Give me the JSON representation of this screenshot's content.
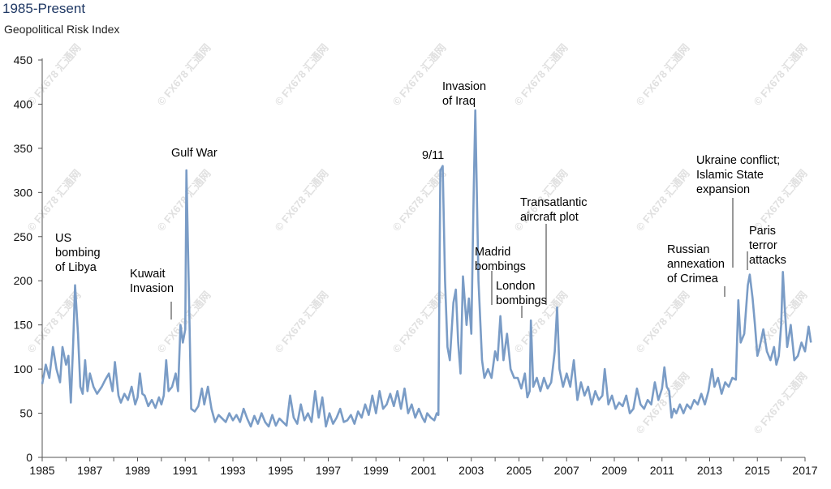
{
  "header": {
    "title": "1985-Present",
    "subtitle": "Geopolitical Risk Index"
  },
  "watermark": "© FX678 汇通网",
  "chart_data": {
    "type": "line",
    "title": "1985-Present",
    "subtitle": "Geopolitical Risk Index",
    "xlabel": "",
    "ylabel": "",
    "ylim": [
      0,
      450
    ],
    "xlim": [
      1985,
      2017.25
    ],
    "yticks": [
      "0",
      "50",
      "100",
      "150",
      "200",
      "250",
      "300",
      "350",
      "400",
      "450"
    ],
    "xticks": [
      "1985",
      "1987",
      "1989",
      "1991",
      "1993",
      "1995",
      "1997",
      "1999",
      "2001",
      "2003",
      "2005",
      "2007",
      "2009",
      "2011",
      "2013",
      "2015",
      "2017"
    ],
    "grid": false,
    "line_color": "#7a9cc6",
    "series": [
      {
        "values": [
          [
            1985.0,
            83
          ],
          [
            1985.15,
            105
          ],
          [
            1985.3,
            90
          ],
          [
            1985.45,
            125
          ],
          [
            1985.6,
            100
          ],
          [
            1985.75,
            85
          ],
          [
            1985.85,
            125
          ],
          [
            1986.0,
            105
          ],
          [
            1986.1,
            115
          ],
          [
            1986.2,
            62
          ],
          [
            1986.3,
            130
          ],
          [
            1986.38,
            195
          ],
          [
            1986.5,
            140
          ],
          [
            1986.6,
            80
          ],
          [
            1986.7,
            72
          ],
          [
            1986.8,
            110
          ],
          [
            1986.9,
            75
          ],
          [
            1987.0,
            95
          ],
          [
            1987.15,
            80
          ],
          [
            1987.3,
            72
          ],
          [
            1987.5,
            80
          ],
          [
            1987.65,
            88
          ],
          [
            1987.8,
            95
          ],
          [
            1987.95,
            75
          ],
          [
            1988.05,
            108
          ],
          [
            1988.2,
            70
          ],
          [
            1988.3,
            62
          ],
          [
            1988.45,
            72
          ],
          [
            1988.6,
            65
          ],
          [
            1988.75,
            80
          ],
          [
            1988.9,
            60
          ],
          [
            1989.0,
            68
          ],
          [
            1989.1,
            95
          ],
          [
            1989.2,
            72
          ],
          [
            1989.3,
            70
          ],
          [
            1989.45,
            58
          ],
          [
            1989.6,
            65
          ],
          [
            1989.75,
            56
          ],
          [
            1989.9,
            68
          ],
          [
            1990.0,
            60
          ],
          [
            1990.1,
            70
          ],
          [
            1990.2,
            110
          ],
          [
            1990.3,
            75
          ],
          [
            1990.45,
            80
          ],
          [
            1990.6,
            95
          ],
          [
            1990.7,
            75
          ],
          [
            1990.8,
            150
          ],
          [
            1990.9,
            130
          ],
          [
            1991.0,
            145
          ],
          [
            1991.05,
            325
          ],
          [
            1991.15,
            190
          ],
          [
            1991.25,
            55
          ],
          [
            1991.4,
            52
          ],
          [
            1991.55,
            58
          ],
          [
            1991.7,
            78
          ],
          [
            1991.8,
            60
          ],
          [
            1991.95,
            80
          ],
          [
            1992.1,
            55
          ],
          [
            1992.25,
            40
          ],
          [
            1992.4,
            48
          ],
          [
            1992.55,
            44
          ],
          [
            1992.7,
            40
          ],
          [
            1992.85,
            50
          ],
          [
            1993.0,
            42
          ],
          [
            1993.15,
            48
          ],
          [
            1993.3,
            40
          ],
          [
            1993.45,
            55
          ],
          [
            1993.6,
            44
          ],
          [
            1993.75,
            35
          ],
          [
            1993.9,
            47
          ],
          [
            1994.05,
            38
          ],
          [
            1994.2,
            50
          ],
          [
            1994.35,
            40
          ],
          [
            1994.5,
            35
          ],
          [
            1994.65,
            48
          ],
          [
            1994.8,
            36
          ],
          [
            1994.95,
            44
          ],
          [
            1995.1,
            40
          ],
          [
            1995.25,
            36
          ],
          [
            1995.4,
            70
          ],
          [
            1995.55,
            45
          ],
          [
            1995.7,
            38
          ],
          [
            1995.85,
            60
          ],
          [
            1996.0,
            42
          ],
          [
            1996.15,
            50
          ],
          [
            1996.3,
            40
          ],
          [
            1996.45,
            75
          ],
          [
            1996.6,
            45
          ],
          [
            1996.75,
            68
          ],
          [
            1996.9,
            35
          ],
          [
            1997.05,
            50
          ],
          [
            1997.2,
            38
          ],
          [
            1997.35,
            45
          ],
          [
            1997.5,
            55
          ],
          [
            1997.65,
            40
          ],
          [
            1997.8,
            42
          ],
          [
            1997.95,
            48
          ],
          [
            1998.1,
            38
          ],
          [
            1998.25,
            52
          ],
          [
            1998.4,
            45
          ],
          [
            1998.55,
            60
          ],
          [
            1998.7,
            48
          ],
          [
            1998.85,
            70
          ],
          [
            1999.0,
            50
          ],
          [
            1999.15,
            75
          ],
          [
            1999.3,
            55
          ],
          [
            1999.45,
            60
          ],
          [
            1999.6,
            72
          ],
          [
            1999.75,
            58
          ],
          [
            1999.9,
            75
          ],
          [
            2000.05,
            55
          ],
          [
            2000.2,
            78
          ],
          [
            2000.35,
            50
          ],
          [
            2000.5,
            60
          ],
          [
            2000.65,
            45
          ],
          [
            2000.8,
            55
          ],
          [
            2000.95,
            45
          ],
          [
            2001.05,
            40
          ],
          [
            2001.15,
            50
          ],
          [
            2001.3,
            45
          ],
          [
            2001.45,
            42
          ],
          [
            2001.55,
            50
          ],
          [
            2001.62,
            48
          ],
          [
            2001.7,
            325
          ],
          [
            2001.8,
            330
          ],
          [
            2001.9,
            200
          ],
          [
            2002.0,
            125
          ],
          [
            2002.1,
            110
          ],
          [
            2002.25,
            175
          ],
          [
            2002.35,
            190
          ],
          [
            2002.45,
            130
          ],
          [
            2002.55,
            95
          ],
          [
            2002.65,
            205
          ],
          [
            2002.8,
            150
          ],
          [
            2002.9,
            180
          ],
          [
            2003.0,
            140
          ],
          [
            2003.1,
            300
          ],
          [
            2003.17,
            393
          ],
          [
            2003.3,
            200
          ],
          [
            2003.45,
            110
          ],
          [
            2003.55,
            90
          ],
          [
            2003.7,
            100
          ],
          [
            2003.85,
            90
          ],
          [
            2004.0,
            120
          ],
          [
            2004.1,
            110
          ],
          [
            2004.22,
            160
          ],
          [
            2004.35,
            110
          ],
          [
            2004.5,
            140
          ],
          [
            2004.65,
            100
          ],
          [
            2004.8,
            90
          ],
          [
            2004.95,
            90
          ],
          [
            2005.1,
            78
          ],
          [
            2005.25,
            95
          ],
          [
            2005.35,
            68
          ],
          [
            2005.45,
            75
          ],
          [
            2005.5,
            155
          ],
          [
            2005.6,
            80
          ],
          [
            2005.75,
            90
          ],
          [
            2005.9,
            75
          ],
          [
            2006.05,
            90
          ],
          [
            2006.2,
            78
          ],
          [
            2006.35,
            85
          ],
          [
            2006.5,
            120
          ],
          [
            2006.6,
            170
          ],
          [
            2006.7,
            100
          ],
          [
            2006.85,
            80
          ],
          [
            2007.0,
            95
          ],
          [
            2007.15,
            80
          ],
          [
            2007.3,
            110
          ],
          [
            2007.45,
            65
          ],
          [
            2007.6,
            85
          ],
          [
            2007.75,
            70
          ],
          [
            2007.9,
            80
          ],
          [
            2008.05,
            60
          ],
          [
            2008.2,
            75
          ],
          [
            2008.35,
            65
          ],
          [
            2008.5,
            70
          ],
          [
            2008.6,
            100
          ],
          [
            2008.75,
            60
          ],
          [
            2008.9,
            70
          ],
          [
            2009.05,
            55
          ],
          [
            2009.2,
            62
          ],
          [
            2009.35,
            58
          ],
          [
            2009.5,
            70
          ],
          [
            2009.65,
            50
          ],
          [
            2009.8,
            55
          ],
          [
            2009.95,
            78
          ],
          [
            2010.1,
            60
          ],
          [
            2010.25,
            55
          ],
          [
            2010.4,
            65
          ],
          [
            2010.55,
            60
          ],
          [
            2010.7,
            85
          ],
          [
            2010.85,
            65
          ],
          [
            2011.0,
            78
          ],
          [
            2011.1,
            102
          ],
          [
            2011.2,
            80
          ],
          [
            2011.3,
            75
          ],
          [
            2011.4,
            45
          ],
          [
            2011.5,
            55
          ],
          [
            2011.6,
            50
          ],
          [
            2011.75,
            60
          ],
          [
            2011.9,
            50
          ],
          [
            2012.05,
            60
          ],
          [
            2012.2,
            55
          ],
          [
            2012.35,
            65
          ],
          [
            2012.5,
            60
          ],
          [
            2012.65,
            72
          ],
          [
            2012.8,
            60
          ],
          [
            2012.95,
            75
          ],
          [
            2013.1,
            100
          ],
          [
            2013.2,
            80
          ],
          [
            2013.35,
            90
          ],
          [
            2013.5,
            72
          ],
          [
            2013.65,
            85
          ],
          [
            2013.8,
            80
          ],
          [
            2013.95,
            90
          ],
          [
            2014.1,
            88
          ],
          [
            2014.2,
            178
          ],
          [
            2014.3,
            130
          ],
          [
            2014.45,
            140
          ],
          [
            2014.6,
            195
          ],
          [
            2014.68,
            207
          ],
          [
            2014.8,
            180
          ],
          [
            2014.9,
            150
          ],
          [
            2015.0,
            115
          ],
          [
            2015.1,
            125
          ],
          [
            2015.25,
            145
          ],
          [
            2015.4,
            120
          ],
          [
            2015.55,
            110
          ],
          [
            2015.7,
            125
          ],
          [
            2015.8,
            105
          ],
          [
            2015.9,
            115
          ],
          [
            2016.0,
            150
          ],
          [
            2016.07,
            210
          ],
          [
            2016.15,
            170
          ],
          [
            2016.25,
            125
          ],
          [
            2016.4,
            150
          ],
          [
            2016.55,
            110
          ],
          [
            2016.7,
            115
          ],
          [
            2016.85,
            130
          ],
          [
            2017.0,
            120
          ],
          [
            2017.15,
            148
          ],
          [
            2017.25,
            130
          ]
        ]
      }
    ],
    "annotations": [
      {
        "lines": [
          "US",
          "bombing",
          "of Libya"
        ],
        "x": 1986.3,
        "y": 195
      },
      {
        "lines": [
          "Kuwait",
          "Invasion"
        ],
        "x": 1990.6,
        "y": 155
      },
      {
        "lines": [
          "Gulf War"
        ],
        "x": 1991.0,
        "y": 325
      },
      {
        "lines": [
          "9/11"
        ],
        "x": 2001.7,
        "y": 330
      },
      {
        "lines": [
          "Invasion",
          "of Iraq"
        ],
        "x": 2003.17,
        "y": 393
      },
      {
        "lines": [
          "Madrid",
          "bombings"
        ],
        "x": 2004.22,
        "y": 160
      },
      {
        "lines": [
          "London",
          "bombings"
        ],
        "x": 2005.5,
        "y": 155
      },
      {
        "lines": [
          "Transatlantic",
          "aircraft plot"
        ],
        "x": 2006.6,
        "y": 170
      },
      {
        "lines": [
          "Russian",
          "annexation",
          "of Crimea"
        ],
        "x": 2014.2,
        "y": 178
      },
      {
        "lines": [
          "Ukraine conflict;",
          "Islamic State",
          "expansion"
        ],
        "x": 2014.68,
        "y": 207
      },
      {
        "lines": [
          "Paris",
          "terror",
          "attacks"
        ],
        "x": 2016.07,
        "y": 210
      }
    ]
  }
}
